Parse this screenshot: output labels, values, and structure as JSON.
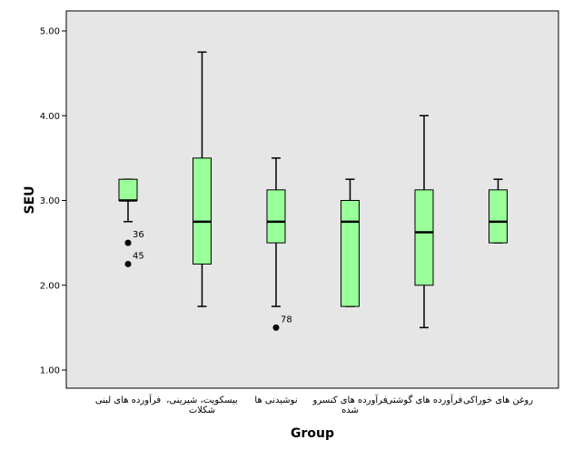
{
  "chart_data": {
    "type": "box",
    "title": "",
    "xlabel": "Group",
    "ylabel": "SEU",
    "ylim": [
      0.75,
      5.25
    ],
    "yticks": [
      "1.00",
      "2.00",
      "3.00",
      "4.00",
      "5.00"
    ],
    "grid": false,
    "box_color": "#99ff99",
    "plot_background": "#e6e6e6",
    "categories": [
      {
        "label_lines": [
          "فرآورده های لبنی"
        ],
        "whisker_low": 2.75,
        "q1": 3.0,
        "median": 3.0,
        "q3": 3.25,
        "whisker_high": 3.25,
        "outliers": [
          {
            "value": 2.5,
            "label": "36"
          },
          {
            "value": 2.25,
            "label": "45"
          }
        ]
      },
      {
        "label_lines": [
          "بیسکویت، شیرینی،",
          "شکلات"
        ],
        "whisker_low": 1.75,
        "q1": 2.25,
        "median": 2.75,
        "q3": 3.5,
        "whisker_high": 4.75,
        "outliers": []
      },
      {
        "label_lines": [
          "نوشیدنی ها"
        ],
        "whisker_low": 1.75,
        "q1": 2.5,
        "median": 2.75,
        "q3": 3.125,
        "whisker_high": 3.5,
        "outliers": [
          {
            "value": 1.5,
            "label": "78"
          }
        ]
      },
      {
        "label_lines": [
          "فرآورده های کنسرو",
          "شده"
        ],
        "whisker_low": 1.75,
        "q1": 1.75,
        "median": 2.75,
        "q3": 3.0,
        "whisker_high": 3.25,
        "outliers": []
      },
      {
        "label_lines": [
          "فرآورده های گوشتی"
        ],
        "whisker_low": 1.5,
        "q1": 2.0,
        "median": 2.625,
        "q3": 3.125,
        "whisker_high": 4.0,
        "outliers": []
      },
      {
        "label_lines": [
          "روغن های خوراکی"
        ],
        "whisker_low": 2.5,
        "q1": 2.5,
        "median": 2.75,
        "q3": 3.125,
        "whisker_high": 3.25,
        "outliers": []
      }
    ]
  }
}
